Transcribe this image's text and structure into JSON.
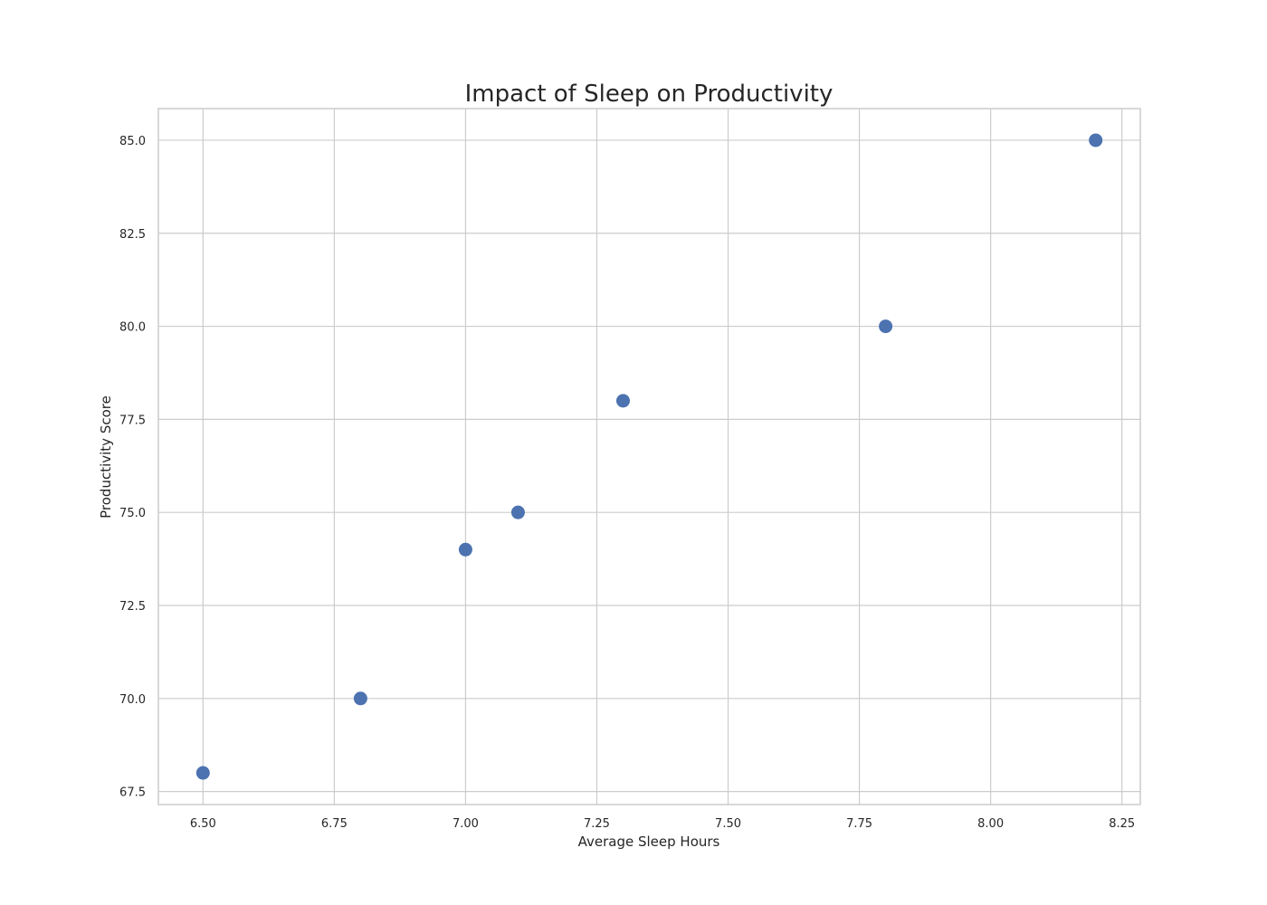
{
  "chart_data": {
    "type": "scatter",
    "title": "Impact of Sleep on Productivity",
    "xlabel": "Average Sleep Hours",
    "ylabel": "Productivity Score",
    "xlim": [
      6.415,
      8.285
    ],
    "ylim": [
      67.15,
      85.85
    ],
    "x_ticks": [
      "6.50",
      "6.75",
      "7.00",
      "7.25",
      "7.50",
      "7.75",
      "8.00",
      "8.25"
    ],
    "x_tick_values": [
      6.5,
      6.75,
      7.0,
      7.25,
      7.5,
      7.75,
      8.0,
      8.25
    ],
    "y_ticks": [
      "67.5",
      "70.0",
      "72.5",
      "75.0",
      "77.5",
      "80.0",
      "82.5",
      "85.0"
    ],
    "y_tick_values": [
      67.5,
      70.0,
      72.5,
      75.0,
      77.5,
      80.0,
      82.5,
      85.0
    ],
    "grid": true,
    "series": [
      {
        "color": "#4c72b0",
        "points": [
          {
            "x": 6.5,
            "y": 68.0
          },
          {
            "x": 6.8,
            "y": 70.0
          },
          {
            "x": 7.0,
            "y": 74.0
          },
          {
            "x": 7.1,
            "y": 75.0
          },
          {
            "x": 7.3,
            "y": 78.0
          },
          {
            "x": 7.8,
            "y": 80.0
          },
          {
            "x": 8.2,
            "y": 85.0
          }
        ]
      }
    ]
  }
}
